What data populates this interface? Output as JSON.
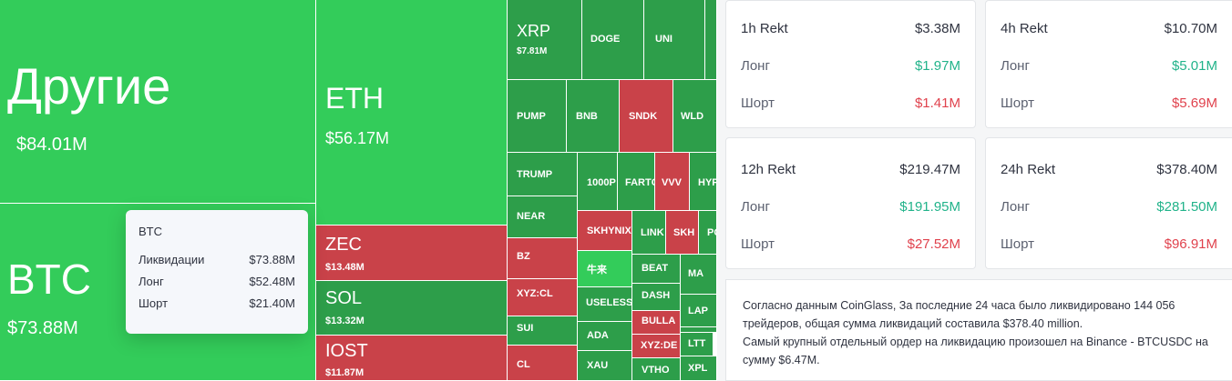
{
  "tiles": [
    {
      "sym": "Другие",
      "val": "$84.01M",
      "color": "#33cc5a"
    },
    {
      "sym": "BTC",
      "val": "$73.88M",
      "color": "#33cc5a"
    },
    {
      "sym": "ETH",
      "val": "$56.17M",
      "color": "#33cc5a"
    },
    {
      "sym": "ZEC",
      "val": "$13.48M",
      "color": "#c94249"
    },
    {
      "sym": "SOL",
      "val": "$13.32M",
      "color": "#2d9e4a"
    },
    {
      "sym": "IOST",
      "val": "$11.87M",
      "color": "#c94249"
    },
    {
      "sym": "XRP",
      "val": "$7.81M",
      "color": "#2d9e4a"
    },
    {
      "sym": "DOGE",
      "val": "",
      "color": "#2d9e4a"
    },
    {
      "sym": "UNI",
      "val": "",
      "color": "#2d9e4a"
    },
    {
      "sym": "",
      "val": "",
      "color": "#2d9e4a"
    },
    {
      "sym": "PUMP",
      "val": "",
      "color": "#2d9e4a"
    },
    {
      "sym": "BNB",
      "val": "",
      "color": "#2d9e4a"
    },
    {
      "sym": "SNDK",
      "val": "",
      "color": "#c94249"
    },
    {
      "sym": "WLD",
      "val": "",
      "color": "#2d9e4a"
    },
    {
      "sym": "TRUMP",
      "val": "",
      "color": "#2d9e4a"
    },
    {
      "sym": "1000P",
      "val": "",
      "color": "#2d9e4a"
    },
    {
      "sym": "FARTC",
      "val": "",
      "color": "#2d9e4a"
    },
    {
      "sym": "VVV",
      "val": "",
      "color": "#c94249"
    },
    {
      "sym": "HYP",
      "val": "",
      "color": "#2d9e4a"
    },
    {
      "sym": "NEAR",
      "val": "",
      "color": "#2d9e4a"
    },
    {
      "sym": "SKHYNIX",
      "val": "",
      "color": "#c94249"
    },
    {
      "sym": "LINK",
      "val": "",
      "color": "#2d9e4a"
    },
    {
      "sym": "SKH",
      "val": "",
      "color": "#c94249"
    },
    {
      "sym": "PO",
      "val": "",
      "color": "#2d9e4a"
    },
    {
      "sym": "BZ",
      "val": "",
      "color": "#c94249"
    },
    {
      "sym": "牛来",
      "val": "",
      "color": "#33cc5a"
    },
    {
      "sym": "BEAT",
      "val": "",
      "color": "#2d9e4a"
    },
    {
      "sym": "MA",
      "val": "",
      "color": "#2d9e4a"
    },
    {
      "sym": "XYZ:CL",
      "val": "",
      "color": "#c94249"
    },
    {
      "sym": "USELESS",
      "val": "",
      "color": "#2d9e4a"
    },
    {
      "sym": "DASH",
      "val": "",
      "color": "#2d9e4a"
    },
    {
      "sym": "LAP",
      "val": "",
      "color": "#2d9e4a"
    },
    {
      "sym": "SUI",
      "val": "",
      "color": "#2d9e4a"
    },
    {
      "sym": "ADA",
      "val": "",
      "color": "#2d9e4a"
    },
    {
      "sym": "BULLA",
      "val": "",
      "color": "#c94249"
    },
    {
      "sym": "",
      "val": "",
      "color": "#2d9e4a"
    },
    {
      "sym": "LTT",
      "val": "",
      "color": "#2d9e4a"
    },
    {
      "sym": "CL",
      "val": "",
      "color": "#c94249"
    },
    {
      "sym": "XAU",
      "val": "",
      "color": "#2d9e4a"
    },
    {
      "sym": "XYZ:DE",
      "val": "",
      "color": "#c94249"
    },
    {
      "sym": "VTHO",
      "val": "",
      "color": "#2d9e4a"
    },
    {
      "sym": "XPL",
      "val": "",
      "color": "#2d9e4a"
    }
  ],
  "tooltip": {
    "title": "BTC",
    "rows": [
      {
        "label": "Ликвидации",
        "value": "$73.88M"
      },
      {
        "label": "Лонг",
        "value": "$52.48M"
      },
      {
        "label": "Шорт",
        "value": "$21.40M"
      }
    ]
  },
  "cards": [
    {
      "title": "1h Rekt",
      "total": "$3.38M",
      "long_label": "Лонг",
      "long": "$1.97M",
      "short_label": "Шорт",
      "short": "$1.41M"
    },
    {
      "title": "4h Rekt",
      "total": "$10.70M",
      "long_label": "Лонг",
      "long": "$5.01M",
      "short_label": "Шорт",
      "short": "$5.69M"
    },
    {
      "title": "12h Rekt",
      "total": "$219.47M",
      "long_label": "Лонг",
      "long": "$191.95M",
      "short_label": "Шорт",
      "short": "$27.52M"
    },
    {
      "title": "24h Rekt",
      "total": "$378.40M",
      "long_label": "Лонг",
      "long": "$281.50M",
      "short_label": "Шорт",
      "short": "$96.91M"
    }
  ],
  "summary": {
    "line1": "Согласно данным CoinGlass, За последние 24 часа было ликвидировано 144 056 трейдеров, общая сумма ликвидаций составила $378.40 million.",
    "line2": "Самый крупный отдельный ордер на ликвидацию произошел на Binance - BTCUSDC на сумму $6.47M."
  },
  "colors": {
    "long": "#21b38a",
    "short": "#e0424d",
    "bright_green": "#33cc5a",
    "green": "#2d9e4a",
    "red": "#c94249"
  }
}
